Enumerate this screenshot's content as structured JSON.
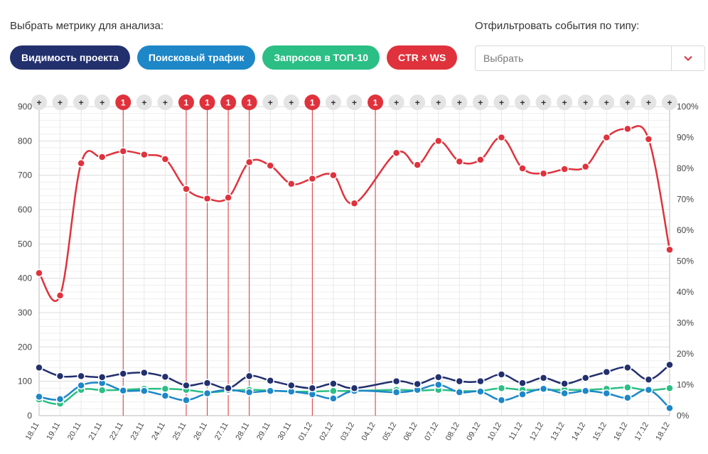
{
  "controls": {
    "metric_label": "Выбрать метрику для анализа:",
    "filter_label": "Отфильтровать события по типу:",
    "metrics": [
      {
        "label": "Видимость проекта",
        "color": "#23306e"
      },
      {
        "label": "Поисковый трафик",
        "color": "#1d87c8"
      },
      {
        "label": "Запросов в ТОП-10",
        "color": "#2bbf85"
      },
      {
        "label": "CTR × WS",
        "color": "#e0323c"
      }
    ],
    "filter_placeholder": "Выбрать",
    "accent_color": "#e0323c"
  },
  "chart_data": {
    "type": "line",
    "x": [
      "18.11",
      "19.11",
      "20.11",
      "21.11",
      "22.11",
      "23.11",
      "24.11",
      "25.11",
      "26.11",
      "27.11",
      "28.11",
      "29.11",
      "30.11",
      "01.12",
      "02.12",
      "03.12",
      "04.12",
      "05.12",
      "06.12",
      "07.12",
      "08.12",
      "09.12",
      "10.12",
      "11.12",
      "12.12",
      "13.12",
      "14.12",
      "15.12",
      "16.12",
      "17.12",
      "18.12"
    ],
    "y_left": {
      "min": 0,
      "max": 900,
      "ticks": [
        0,
        100,
        200,
        300,
        400,
        500,
        600,
        700,
        800,
        900
      ]
    },
    "y_right": {
      "min": 0,
      "max": 100,
      "ticks": [
        "0%",
        "10%",
        "20%",
        "30%",
        "40%",
        "50%",
        "60%",
        "70%",
        "80%",
        "90%",
        "100%"
      ]
    },
    "grid": true,
    "series": [
      {
        "color": "#e0323c",
        "values": [
          415,
          350,
          735,
          753,
          770,
          760,
          747,
          660,
          632,
          635,
          738,
          728,
          675,
          690,
          700,
          618,
          null,
          765,
          730,
          800,
          740,
          745,
          810,
          720,
          705,
          718,
          725,
          810,
          835,
          805,
          483
        ]
      },
      {
        "color": "#23306e",
        "values": [
          140,
          115,
          115,
          112,
          122,
          125,
          113,
          88,
          95,
          80,
          115,
          102,
          88,
          80,
          93,
          80,
          null,
          100,
          92,
          112,
          100,
          100,
          120,
          95,
          110,
          93,
          110,
          127,
          140,
          105,
          148
        ]
      },
      {
        "color": "#1d87c8",
        "values": [
          55,
          48,
          88,
          95,
          73,
          72,
          58,
          45,
          65,
          75,
          68,
          72,
          70,
          62,
          50,
          72,
          null,
          68,
          75,
          90,
          68,
          70,
          45,
          62,
          78,
          65,
          72,
          65,
          52,
          75,
          22
        ]
      },
      {
        "color": "#2bbf85",
        "values": [
          47,
          35,
          75,
          74,
          75,
          78,
          78,
          75,
          68,
          72,
          75,
          73,
          70,
          70,
          72,
          72,
          null,
          75,
          73,
          75,
          72,
          72,
          80,
          75,
          75,
          75,
          75,
          78,
          82,
          74,
          80
        ]
      }
    ],
    "event_markers": {
      "badges": [
        "+",
        "+",
        "+",
        "+",
        "1",
        "+",
        "+",
        "1",
        "1",
        "1",
        "1",
        "+",
        "+",
        "1",
        "+",
        "+",
        "1",
        "+",
        "+",
        "+",
        "+",
        "+",
        "+",
        "+",
        "+",
        "+",
        "+",
        "+",
        "+",
        "+",
        "+"
      ]
    }
  }
}
